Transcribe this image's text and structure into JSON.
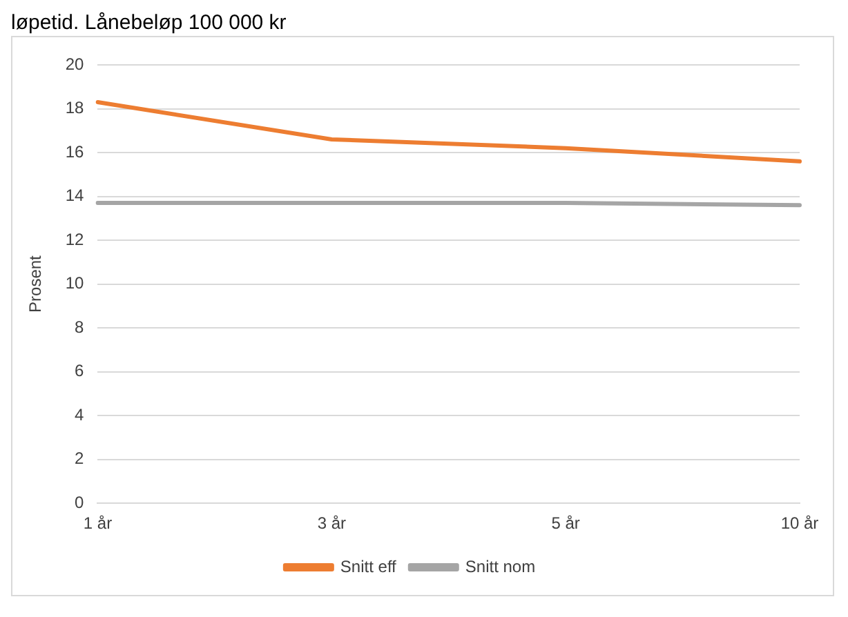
{
  "chart_data": {
    "type": "line",
    "title": "løpetid. Lånebeløp 100 000 kr",
    "ylabel": "Prosent",
    "categories": [
      "1 år",
      "3 år",
      "5 år",
      "10 år"
    ],
    "series": [
      {
        "name": "Snitt eff",
        "color": "#ed7d31",
        "values": [
          18.3,
          16.6,
          16.2,
          15.6
        ]
      },
      {
        "name": "Snitt nom",
        "color": "#a5a5a5",
        "values": [
          13.7,
          13.7,
          13.7,
          13.6
        ]
      }
    ],
    "ylim": [
      0,
      20
    ],
    "yticks": [
      0,
      2,
      4,
      6,
      8,
      10,
      12,
      14,
      16,
      18,
      20
    ],
    "grid": "y",
    "legend": "bottom",
    "marker": "none"
  }
}
